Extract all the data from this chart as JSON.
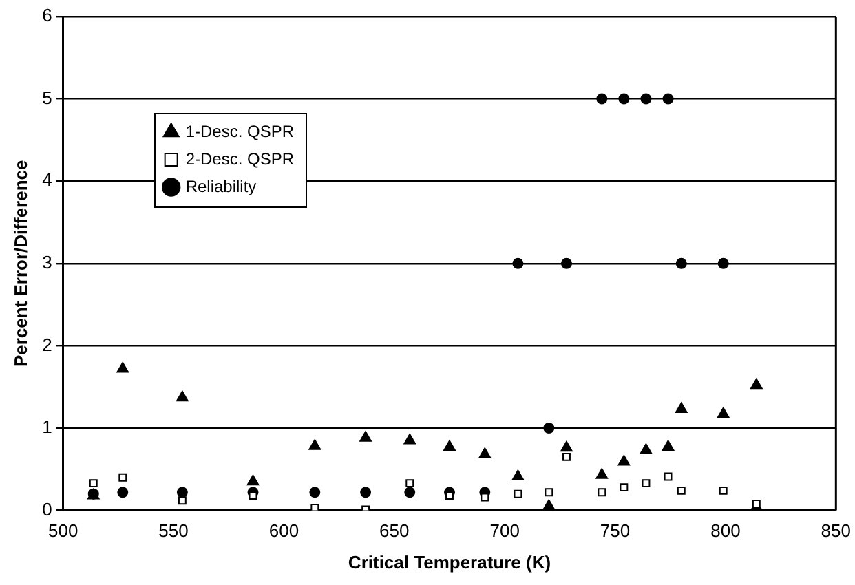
{
  "chart_data": {
    "type": "scatter",
    "xlabel": "Critical Temperature (K)",
    "ylabel": "Percent Error/Difference",
    "x": [
      513.75,
      527,
      554,
      586,
      614,
      637,
      657,
      675,
      691,
      706,
      720,
      728,
      744,
      754,
      764,
      774,
      780,
      799,
      814
    ],
    "series": [
      {
        "name": "1-Desc. QSPR",
        "color": "#000000",
        "marker": "triangle",
        "values": [
          0.18,
          1.72,
          1.37,
          0.35,
          0.78,
          0.88,
          0.85,
          0.77,
          0.68,
          0.41,
          0.05,
          0.76,
          0.43,
          0.59,
          0.73,
          0.77,
          1.23,
          1.17,
          1.52
        ]
      },
      {
        "name": "2-Desc. QSPR",
        "color": "#000000",
        "marker": "square",
        "values": [
          0.33,
          0.4,
          0.12,
          0.18,
          0.03,
          0.01,
          0.33,
          0.18,
          0.16,
          0.2,
          0.22,
          0.65,
          0.22,
          0.28,
          0.33,
          0.41,
          0.24,
          0.24,
          0.08
        ]
      },
      {
        "name": "Reliability",
        "color": "#000000",
        "marker": "circle",
        "values": [
          0.2,
          0.22,
          0.22,
          0.22,
          0.22,
          0.22,
          0.22,
          0.22,
          0.22,
          3,
          1,
          3,
          5,
          5,
          5,
          5,
          3,
          3,
          0
        ]
      }
    ],
    "xlim": [
      500,
      850
    ],
    "xticks": [
      500,
      550,
      600,
      650,
      700,
      750,
      800,
      850
    ],
    "ylim": [
      0,
      6
    ],
    "yticks": [
      0,
      1,
      2,
      3,
      4,
      5,
      6
    ],
    "grid": "y",
    "legend": "top left"
  }
}
